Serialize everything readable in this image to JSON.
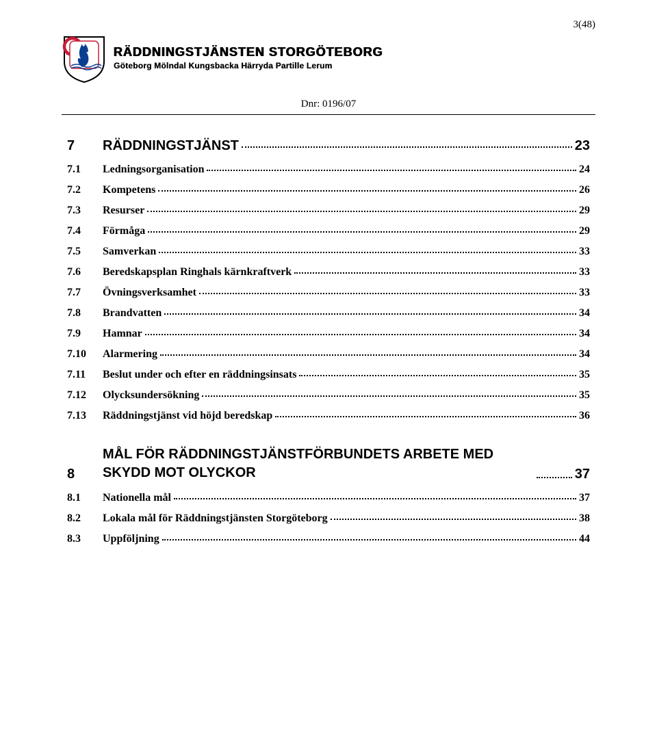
{
  "page_marker": "3(48)",
  "org_title": "RÄDDNINGSTJÄNSTEN STORGÖTEBORG",
  "org_subtitle": "Göteborg Mölndal Kungsbacka Härryda Partille Lerum",
  "dnr": "Dnr: 0196/07",
  "logo": {
    "shield_fill": "#ffffff",
    "shield_stroke": "#000000",
    "inner_panel_stroke": "#c41e3a",
    "flame_fill": "#0b3d91",
    "ring_fill": "#c41e3a"
  },
  "toc": [
    {
      "level": 1,
      "num": "7",
      "title": "RÄDDNINGSTJÄNST",
      "page": "23"
    },
    {
      "level": 2,
      "num": "7.1",
      "title": "Ledningsorganisation",
      "page": "24"
    },
    {
      "level": 2,
      "num": "7.2",
      "title": "Kompetens",
      "page": "26"
    },
    {
      "level": 2,
      "num": "7.3",
      "title": "Resurser",
      "page": "29"
    },
    {
      "level": 2,
      "num": "7.4",
      "title": "Förmåga",
      "page": "29"
    },
    {
      "level": 2,
      "num": "7.5",
      "title": "Samverkan",
      "page": "33"
    },
    {
      "level": 2,
      "num": "7.6",
      "title": "Beredskapsplan Ringhals kärnkraftverk",
      "page": "33"
    },
    {
      "level": 2,
      "num": "7.7",
      "title": "Övningsverksamhet",
      "page": "33"
    },
    {
      "level": 2,
      "num": "7.8",
      "title": "Brandvatten",
      "page": "34"
    },
    {
      "level": 2,
      "num": "7.9",
      "title": "Hamnar",
      "page": "34"
    },
    {
      "level": 2,
      "num": "7.10",
      "title": "Alarmering",
      "page": "34"
    },
    {
      "level": 2,
      "num": "7.11",
      "title": "Beslut under och efter en räddningsinsats",
      "page": "35"
    },
    {
      "level": 2,
      "num": "7.12",
      "title": "Olycksundersökning",
      "page": "35"
    },
    {
      "level": 2,
      "num": "7.13",
      "title": "Räddningstjänst vid höjd beredskap",
      "page": "36"
    },
    {
      "level": 1,
      "num": "8",
      "title": "MÅL FÖR RÄDDNINGSTJÄNSTFÖRBUNDETS ARBETE MED SKYDD MOT OLYCKOR",
      "page": "37",
      "multiline": true
    },
    {
      "level": 2,
      "num": "8.1",
      "title": "Nationella mål",
      "page": "37"
    },
    {
      "level": 2,
      "num": "8.2",
      "title": "Lokala mål för Räddningstjänsten Storgöteborg",
      "page": "38"
    },
    {
      "level": 2,
      "num": "8.3",
      "title": "Uppföljning",
      "page": "44"
    }
  ]
}
